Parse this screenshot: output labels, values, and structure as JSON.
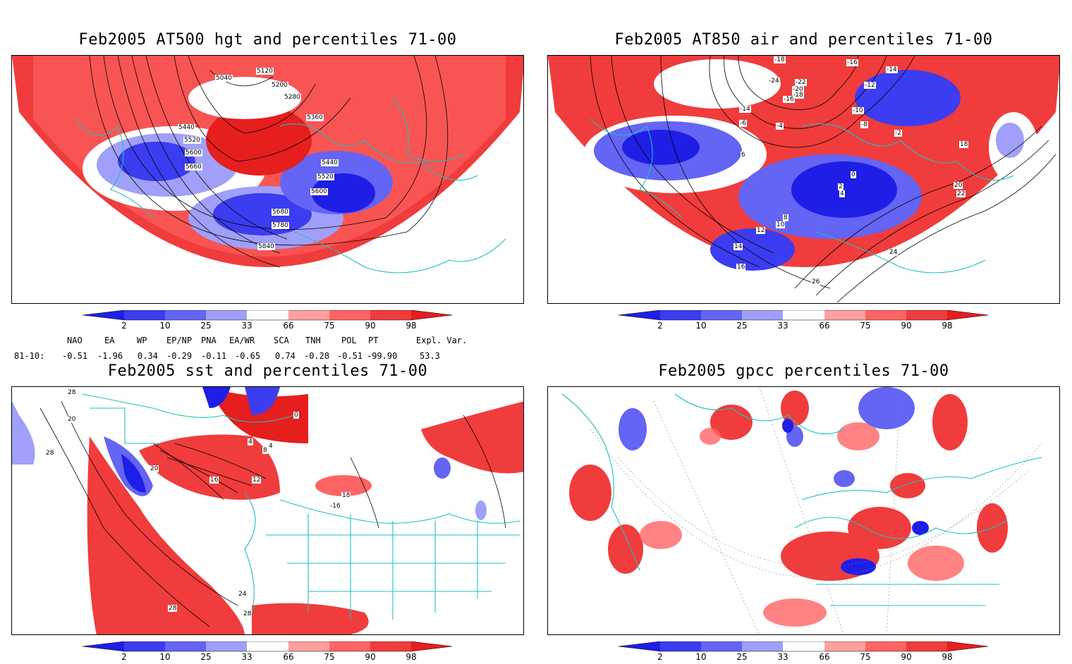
{
  "panels": [
    {
      "title": "Feb2005 AT500 hgt and percentiles 71-00",
      "contour_labels": [
        "5040",
        "5120",
        "5200",
        "5280",
        "5360",
        "5440",
        "5520",
        "5600",
        "5660",
        "5440",
        "5520",
        "5600",
        "5680",
        "5780",
        "5840"
      ]
    },
    {
      "title": "Feb2005 AT850 air and percentiles 71-00",
      "contour_labels": [
        "-16",
        "-18",
        "-14",
        "-24",
        "-22",
        "-20",
        "-18",
        "-16",
        "-14",
        "-12",
        "-10",
        "-8",
        "-6",
        "-4",
        "-2",
        "0",
        "2",
        "4",
        "6",
        "8",
        "10",
        "12",
        "14",
        "16",
        "18",
        "20",
        "22",
        "24",
        "26"
      ]
    },
    {
      "title": "Feb2005 sst and percentiles 71-00",
      "contour_labels": [
        "28",
        "20",
        "28",
        "0",
        "4",
        "8",
        "4",
        "16",
        "12",
        "20",
        "-16",
        "18",
        "24",
        "28",
        "28"
      ]
    },
    {
      "title": "Feb2005 gpcc percentiles 71-00",
      "contour_labels": []
    }
  ],
  "colorbar": {
    "labels": [
      "2",
      "10",
      "25",
      "33",
      "66",
      "75",
      "90",
      "98"
    ],
    "colors": [
      "#1e1ee6",
      "#3c3cf0",
      "#6464f5",
      "#a0a0fa",
      "#ffffff",
      "#ffa0a0",
      "#ff6464",
      "#f03c3c",
      "#e61e1e"
    ]
  },
  "indices": {
    "headers": [
      "NAO",
      "EA",
      "WP",
      "EP/NP",
      "PNA",
      "EA/WR",
      "SCA",
      "TNH",
      "POL",
      "PT",
      "Expl. Var."
    ],
    "row_label": "81-10:",
    "values": [
      "-0.51",
      "-1.96",
      "0.34",
      "-0.29",
      "-0.11",
      "-0.65",
      "0.74",
      "-0.28",
      "-0.51",
      "-99.90",
      "53.3"
    ]
  }
}
